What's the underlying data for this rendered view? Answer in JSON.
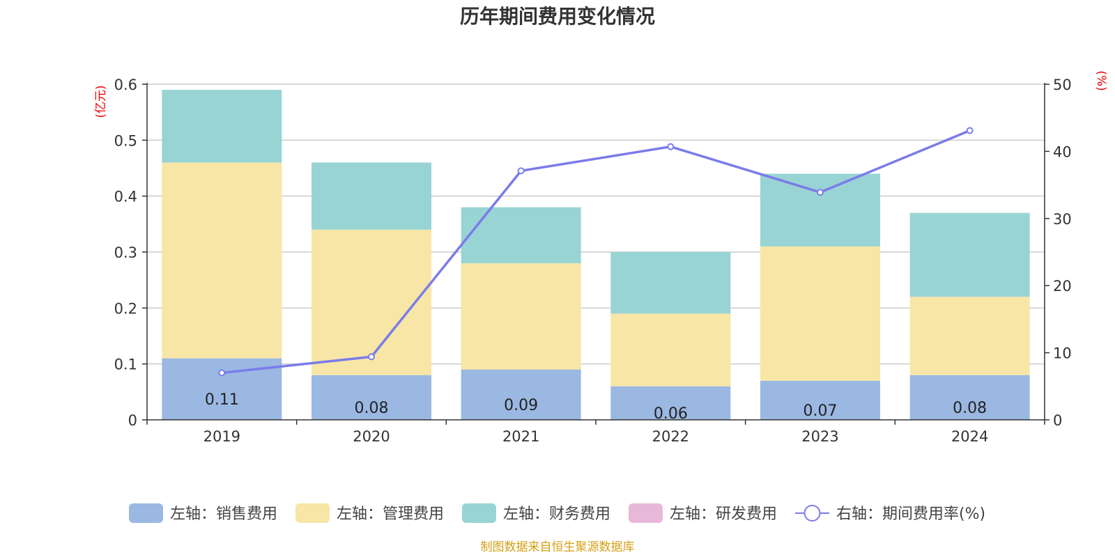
{
  "chart_data": {
    "type": "bar",
    "title": "历年期间费用变化情况",
    "left_unit": "(亿元)",
    "right_unit": "(%)",
    "categories": [
      "2019",
      "2020",
      "2021",
      "2022",
      "2023",
      "2024"
    ],
    "left_axis": {
      "min": 0,
      "max": 0.6,
      "ticks": [
        "0",
        "0.1",
        "0.2",
        "0.3",
        "0.4",
        "0.5",
        "0.6"
      ]
    },
    "right_axis": {
      "min": 0,
      "max": 50,
      "ticks": [
        "0",
        "10",
        "20",
        "30",
        "40",
        "50"
      ]
    },
    "grid": true,
    "stacked": true,
    "series": [
      {
        "name": "左轴：销售费用",
        "color": "#9ab8e2",
        "values": [
          0.11,
          0.08,
          0.09,
          0.06,
          0.07,
          0.08
        ],
        "labels": [
          "0.11",
          "0.08",
          "0.09",
          "0.06",
          "0.07",
          "0.08"
        ]
      },
      {
        "name": "左轴：管理费用",
        "color": "#f7e6a6",
        "values": [
          0.35,
          0.26,
          0.19,
          0.13,
          0.24,
          0.14
        ]
      },
      {
        "name": "左轴：财务费用",
        "color": "#98d4d4",
        "values": [
          0.13,
          0.12,
          0.1,
          0.11,
          0.13,
          0.15
        ]
      },
      {
        "name": "左轴：研发费用",
        "color": "#e8b8d8",
        "values": [
          0,
          0,
          0,
          0,
          0,
          0
        ]
      }
    ],
    "line_series": {
      "name": "右轴：期间费用率(%)",
      "color": "#7b7bea",
      "axis": "right",
      "values": [
        7.0,
        9.4,
        37.1,
        40.7,
        33.9,
        43.1
      ]
    },
    "legend_position": "bottom"
  },
  "source": "制图数据来自恒生聚源数据库"
}
